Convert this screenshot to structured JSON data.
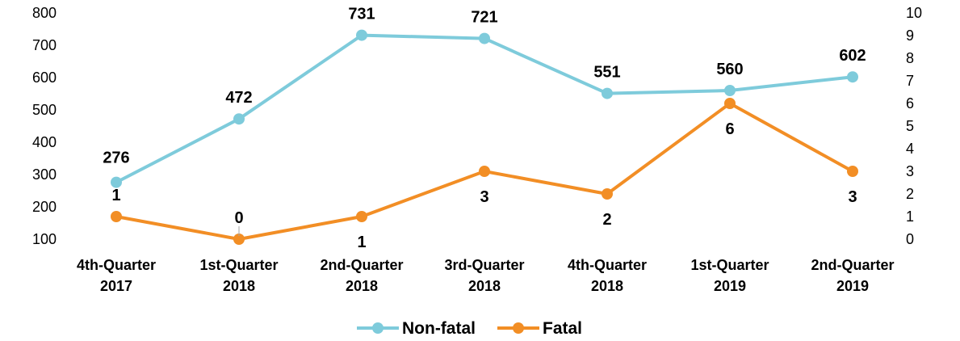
{
  "chart_data": {
    "type": "line",
    "categories": [
      [
        "4th-Quarter",
        "2017"
      ],
      [
        "1st-Quarter",
        "2018"
      ],
      [
        "2nd-Quarter",
        "2018"
      ],
      [
        "3rd-Quarter",
        "2018"
      ],
      [
        "4th-Quarter",
        "2018"
      ],
      [
        "1st-Quarter",
        "2019"
      ],
      [
        "2nd-Quarter",
        "2019"
      ]
    ],
    "series": [
      {
        "name": "Non-fatal",
        "axis": "left",
        "color": "#7ecbdb",
        "values": [
          276,
          472,
          731,
          721,
          551,
          560,
          602
        ]
      },
      {
        "name": "Fatal",
        "axis": "right",
        "color": "#f28e25",
        "values": [
          1,
          0,
          1,
          3,
          2,
          6,
          3
        ]
      }
    ],
    "y_left": {
      "min": 100,
      "max": 800,
      "step": 100
    },
    "y_right": {
      "min": 0,
      "max": 10,
      "step": 1
    },
    "grid": false,
    "legend": "bottom"
  }
}
